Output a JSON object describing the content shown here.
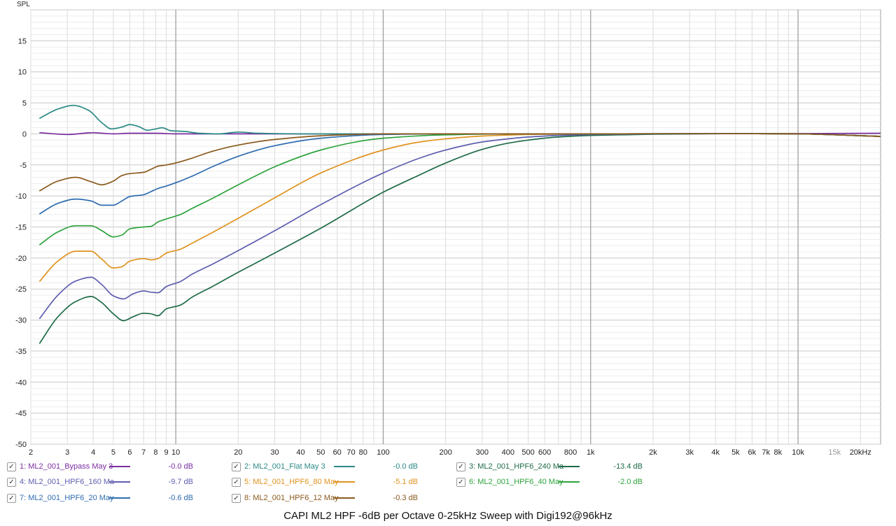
{
  "chart_data": {
    "type": "line",
    "title": "CAPI ML2 HPF -6dB per Octave 0-25kHz Sweep with Digi192@96kHz",
    "ylabel": "SPL",
    "xlabel": "",
    "x_scale": "log",
    "xlim": [
      2,
      25000
    ],
    "ylim": [
      -50,
      20
    ],
    "grid": true,
    "y_ticks": [
      "15",
      "10",
      "5",
      "0",
      "-5",
      "-10",
      "-15",
      "-20",
      "-25",
      "-30",
      "-35",
      "-40",
      "-45",
      "-50"
    ],
    "x_ticks": [
      {
        "f": 2,
        "label": "2"
      },
      {
        "f": 3,
        "label": "3"
      },
      {
        "f": 4,
        "label": "4"
      },
      {
        "f": 5,
        "label": "5"
      },
      {
        "f": 6,
        "label": "6"
      },
      {
        "f": 7,
        "label": "7"
      },
      {
        "f": 8,
        "label": "8"
      },
      {
        "f": 9,
        "label": "9"
      },
      {
        "f": 10,
        "label": "10"
      },
      {
        "f": 20,
        "label": "20"
      },
      {
        "f": 30,
        "label": "30"
      },
      {
        "f": 40,
        "label": "40"
      },
      {
        "f": 50,
        "label": "50"
      },
      {
        "f": 60,
        "label": "60"
      },
      {
        "f": 70,
        "label": "70"
      },
      {
        "f": 80,
        "label": "80"
      },
      {
        "f": 100,
        "label": "100"
      },
      {
        "f": 200,
        "label": "200"
      },
      {
        "f": 300,
        "label": "300"
      },
      {
        "f": 400,
        "label": "400"
      },
      {
        "f": 500,
        "label": "500"
      },
      {
        "f": 600,
        "label": "600"
      },
      {
        "f": 800,
        "label": "800"
      },
      {
        "f": 1000,
        "label": "1k"
      },
      {
        "f": 2000,
        "label": "2k"
      },
      {
        "f": 3000,
        "label": "3k"
      },
      {
        "f": 4000,
        "label": "4k"
      },
      {
        "f": 5000,
        "label": "5k"
      },
      {
        "f": 6000,
        "label": "6k"
      },
      {
        "f": 7000,
        "label": "7k"
      },
      {
        "f": 8000,
        "label": "8k"
      },
      {
        "f": 10000,
        "label": "10k"
      },
      {
        "f": 15000,
        "label": "15k",
        "muted": true
      },
      {
        "f": 20000,
        "label": "20kHz"
      }
    ],
    "series": [
      {
        "name": "1: ML2_001_Bypass May 3",
        "color": "#7a2ea0",
        "legend_value": "-0.0 dB",
        "points": [
          [
            2.2,
            0.2
          ],
          [
            3,
            -0.1
          ],
          [
            4,
            0.2
          ],
          [
            5,
            0
          ],
          [
            6,
            0.1
          ],
          [
            8,
            0.1
          ],
          [
            10,
            0
          ],
          [
            20,
            0
          ],
          [
            100,
            0
          ],
          [
            1000,
            0
          ],
          [
            5000,
            0.05
          ],
          [
            10000,
            0.05
          ],
          [
            25000,
            0.1
          ]
        ]
      },
      {
        "name": "2: ML2_001_Flat May 3",
        "color": "#2b8a86",
        "legend_value": "-0.0 dB",
        "points": [
          [
            2.2,
            2.5
          ],
          [
            2.7,
            4
          ],
          [
            3.2,
            4.6
          ],
          [
            3.8,
            3.8
          ],
          [
            4.4,
            1.8
          ],
          [
            4.9,
            0.8
          ],
          [
            5.5,
            1.1
          ],
          [
            6,
            1.5
          ],
          [
            6.6,
            1.2
          ],
          [
            7.3,
            0.6
          ],
          [
            8,
            0.8
          ],
          [
            8.6,
            1
          ],
          [
            9.5,
            0.5
          ],
          [
            11,
            0.4
          ],
          [
            13,
            0.1
          ],
          [
            16,
            0
          ],
          [
            20,
            0.3
          ],
          [
            25,
            0.1
          ],
          [
            40,
            0
          ],
          [
            100,
            0
          ],
          [
            1000,
            0
          ],
          [
            5000,
            0.05
          ],
          [
            10000,
            0
          ],
          [
            25000,
            -0.4
          ]
        ]
      },
      {
        "name": "3: ML2_001_HPF6_240 Ma",
        "color": "#1e6b47",
        "legend_value": "-13.4 dB",
        "points": [
          [
            2.2,
            -33.8
          ],
          [
            2.7,
            -29.5
          ],
          [
            3.3,
            -27
          ],
          [
            3.9,
            -26.2
          ],
          [
            4.4,
            -27.2
          ],
          [
            5,
            -29
          ],
          [
            5.6,
            -30.1
          ],
          [
            6.2,
            -29.5
          ],
          [
            7,
            -28.9
          ],
          [
            7.6,
            -29
          ],
          [
            8.2,
            -29.3
          ],
          [
            9,
            -28.2
          ],
          [
            10.5,
            -27.6
          ],
          [
            12,
            -26.3
          ],
          [
            15,
            -24.6
          ],
          [
            20,
            -22.3
          ],
          [
            30,
            -19.2
          ],
          [
            50,
            -15.2
          ],
          [
            100,
            -9.4
          ],
          [
            150,
            -6.6
          ],
          [
            200,
            -4.7
          ],
          [
            300,
            -2.5
          ],
          [
            400,
            -1.5
          ],
          [
            500,
            -1
          ],
          [
            700,
            -0.5
          ],
          [
            1000,
            -0.25
          ],
          [
            2000,
            -0.05
          ],
          [
            5000,
            0.05
          ],
          [
            10000,
            0
          ],
          [
            25000,
            -0.4
          ]
        ]
      },
      {
        "name": "4: ML2_001_HPF6_160 Ma",
        "color": "#5e5eb0",
        "legend_value": "-9.7 dB",
        "points": [
          [
            2.2,
            -29.8
          ],
          [
            2.7,
            -26
          ],
          [
            3.3,
            -23.7
          ],
          [
            3.9,
            -23.1
          ],
          [
            4.4,
            -24.3
          ],
          [
            5,
            -26.1
          ],
          [
            5.6,
            -26.6
          ],
          [
            6.2,
            -25.8
          ],
          [
            7,
            -25.3
          ],
          [
            7.6,
            -25.5
          ],
          [
            8.2,
            -25.6
          ],
          [
            9,
            -24.6
          ],
          [
            10.5,
            -23.8
          ],
          [
            12,
            -22.6
          ],
          [
            15,
            -21
          ],
          [
            20,
            -18.8
          ],
          [
            30,
            -15.6
          ],
          [
            50,
            -11.4
          ],
          [
            100,
            -6.3
          ],
          [
            150,
            -3.9
          ],
          [
            200,
            -2.6
          ],
          [
            300,
            -1.3
          ],
          [
            400,
            -0.8
          ],
          [
            500,
            -0.5
          ],
          [
            700,
            -0.25
          ],
          [
            1000,
            -0.1
          ],
          [
            2000,
            0
          ],
          [
            5000,
            0.05
          ],
          [
            10000,
            0
          ],
          [
            25000,
            -0.4
          ]
        ]
      },
      {
        "name": "5: ML2_001_HPF6_80 May",
        "color": "#e0921e",
        "legend_value": "-5.1 dB",
        "points": [
          [
            2.2,
            -23.8
          ],
          [
            2.7,
            -20.5
          ],
          [
            3.3,
            -18.9
          ],
          [
            3.9,
            -18.9
          ],
          [
            4.4,
            -20.2
          ],
          [
            5,
            -21.6
          ],
          [
            5.5,
            -21.4
          ],
          [
            6,
            -20.5
          ],
          [
            7,
            -20.1
          ],
          [
            7.6,
            -20.3
          ],
          [
            8.2,
            -20.1
          ],
          [
            9,
            -19.2
          ],
          [
            10.5,
            -18.6
          ],
          [
            12,
            -17.6
          ],
          [
            15,
            -15.9
          ],
          [
            20,
            -13.6
          ],
          [
            30,
            -10.3
          ],
          [
            50,
            -6.3
          ],
          [
            100,
            -2.6
          ],
          [
            150,
            -1.3
          ],
          [
            200,
            -0.8
          ],
          [
            300,
            -0.35
          ],
          [
            500,
            -0.1
          ],
          [
            1000,
            0
          ],
          [
            5000,
            0.05
          ],
          [
            10000,
            0
          ],
          [
            25000,
            -0.4
          ]
        ]
      },
      {
        "name": "6: ML2_001_HPF6_40 May",
        "color": "#2ea33c",
        "legend_value": "-2.0 dB",
        "points": [
          [
            2.2,
            -17.9
          ],
          [
            2.7,
            -15.8
          ],
          [
            3.3,
            -14.8
          ],
          [
            3.9,
            -14.8
          ],
          [
            4.4,
            -15.6
          ],
          [
            5,
            -16.6
          ],
          [
            5.5,
            -16.3
          ],
          [
            6,
            -15.3
          ],
          [
            7,
            -15
          ],
          [
            7.6,
            -14.9
          ],
          [
            8.2,
            -14.2
          ],
          [
            9,
            -13.7
          ],
          [
            10.5,
            -13
          ],
          [
            12,
            -12
          ],
          [
            15,
            -10.4
          ],
          [
            20,
            -8.2
          ],
          [
            30,
            -5.3
          ],
          [
            50,
            -2.6
          ],
          [
            80,
            -1.1
          ],
          [
            100,
            -0.7
          ],
          [
            200,
            -0.15
          ],
          [
            400,
            0
          ],
          [
            1000,
            0
          ],
          [
            5000,
            0.05
          ],
          [
            10000,
            0
          ],
          [
            25000,
            -0.4
          ]
        ]
      },
      {
        "name": "7: ML2_001_HPF6_20 May",
        "color": "#2f6cb0",
        "legend_value": "-0.6 dB",
        "points": [
          [
            2.2,
            -12.9
          ],
          [
            2.7,
            -11.2
          ],
          [
            3.3,
            -10.5
          ],
          [
            3.9,
            -10.8
          ],
          [
            4.4,
            -11.5
          ],
          [
            5,
            -11.5
          ],
          [
            5.5,
            -10.8
          ],
          [
            6,
            -10.1
          ],
          [
            7,
            -9.8
          ],
          [
            7.6,
            -9.3
          ],
          [
            8.2,
            -8.8
          ],
          [
            9,
            -8.4
          ],
          [
            10.5,
            -7.6
          ],
          [
            12,
            -6.8
          ],
          [
            15,
            -5.3
          ],
          [
            20,
            -3.6
          ],
          [
            30,
            -1.9
          ],
          [
            50,
            -0.7
          ],
          [
            100,
            -0.1
          ],
          [
            200,
            0
          ],
          [
            1000,
            0
          ],
          [
            5000,
            0.05
          ],
          [
            10000,
            0
          ],
          [
            25000,
            -0.4
          ]
        ]
      },
      {
        "name": "8: ML2_001_HPF6_12 May",
        "color": "#8a5a1c",
        "legend_value": "-0.3 dB",
        "points": [
          [
            2.2,
            -9.2
          ],
          [
            2.7,
            -7.6
          ],
          [
            3.3,
            -7
          ],
          [
            3.9,
            -7.7
          ],
          [
            4.4,
            -8.2
          ],
          [
            5,
            -7.6
          ],
          [
            5.5,
            -6.7
          ],
          [
            6,
            -6.4
          ],
          [
            7,
            -6.2
          ],
          [
            7.6,
            -5.7
          ],
          [
            8.2,
            -5.2
          ],
          [
            9,
            -5
          ],
          [
            10.5,
            -4.5
          ],
          [
            12,
            -3.9
          ],
          [
            15,
            -2.8
          ],
          [
            20,
            -1.8
          ],
          [
            30,
            -0.9
          ],
          [
            50,
            -0.3
          ],
          [
            100,
            0
          ],
          [
            1000,
            0
          ],
          [
            5000,
            0.05
          ],
          [
            10000,
            0
          ],
          [
            25000,
            -0.4
          ]
        ]
      }
    ]
  },
  "legend": [
    {
      "label": "1: ML2_001_Bypass May 3",
      "value": "-0.0 dB",
      "color": "#7a2ea0",
      "check": "✓"
    },
    {
      "label": "2: ML2_001_Flat May 3",
      "value": "-0.0 dB",
      "color": "#2b8a86",
      "check": "✓"
    },
    {
      "label": "3: ML2_001_HPF6_240 Ma",
      "value": "-13.4 dB",
      "color": "#1e6b47",
      "check": "✓"
    },
    {
      "label": "4: ML2_001_HPF6_160 Ma",
      "value": "-9.7 dB",
      "color": "#5e5eb0",
      "check": "✓"
    },
    {
      "label": "5: ML2_001_HPF6_80 May",
      "value": "-5.1 dB",
      "color": "#e0921e",
      "check": "✓"
    },
    {
      "label": "6: ML2_001_HPF6_40 May",
      "value": "-2.0 dB",
      "color": "#2ea33c",
      "check": "✓"
    },
    {
      "label": "7: ML2_001_HPF6_20 May",
      "value": "-0.6 dB",
      "color": "#2f6cb0",
      "check": "✓"
    },
    {
      "label": "8: ML2_001_HPF6_12 May",
      "value": "-0.3 dB",
      "color": "#8a5a1c",
      "check": "✓"
    }
  ]
}
